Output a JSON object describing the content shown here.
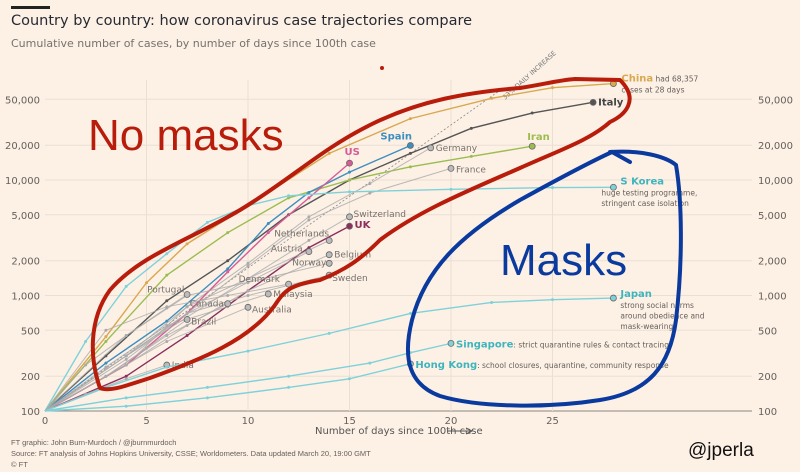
{
  "header": {
    "title": "Country by country: how coronavirus case trajectories compare",
    "subtitle": "Cumulative number of cases, by number of days since 100th case"
  },
  "footer": {
    "credit": "FT graphic: John Burn-Murdoch / @jburnmurdoch",
    "source": "Source: FT analysis of Johns Hopkins University, CSSE; Worldometers. Data updated March 20, 19:00 GMT",
    "copyright": "© FT"
  },
  "watermark": "@jperla",
  "handwritten": {
    "red_label": "No masks",
    "blue_label": "Masks",
    "red_color": "#b81d0c",
    "blue_color": "#0b3a9e"
  },
  "chart_data": {
    "type": "line",
    "title": "Country by country: how coronavirus case trajectories compare",
    "subtitle": "Cumulative number of cases, by number of days since 100th case",
    "xlabel": "Number of days since 100th case",
    "ylabel": "",
    "xlim": [
      0,
      37
    ],
    "ylim": [
      100,
      100000
    ],
    "yscale": "log",
    "xticks": [
      0,
      5,
      10,
      15,
      20,
      25
    ],
    "yticks": [
      100,
      200,
      500,
      1000,
      2000,
      5000,
      10000,
      20000,
      50000
    ],
    "ytick_labels": [
      "100",
      "200",
      "500",
      "1,000",
      "2,000",
      "5,000",
      "10,000",
      "20,000",
      "50,000"
    ],
    "grid": true,
    "reference_line": {
      "label": "33% DAILY INCREASE",
      "daily_growth": 0.33
    },
    "series": [
      {
        "name": "China",
        "color": "#d9a84f",
        "label": "China",
        "note": "had 68,357",
        "note2": "cases at 28 days",
        "points": [
          [
            0,
            100
          ],
          [
            3,
            440
          ],
          [
            5,
            1290
          ],
          [
            7,
            2800
          ],
          [
            10,
            6000
          ],
          [
            14,
            17000
          ],
          [
            18,
            34000
          ],
          [
            22,
            51000
          ],
          [
            25,
            63000
          ],
          [
            28,
            68357
          ]
        ]
      },
      {
        "name": "Italy",
        "color": "#555555",
        "label": "Italy",
        "points": [
          [
            0,
            100
          ],
          [
            3,
            300
          ],
          [
            6,
            900
          ],
          [
            9,
            2000
          ],
          [
            12,
            5000
          ],
          [
            15,
            10000
          ],
          [
            18,
            17000
          ],
          [
            21,
            28000
          ],
          [
            24,
            38000
          ],
          [
            27,
            47000
          ]
        ]
      },
      {
        "name": "Iran",
        "color": "#9bbd4f",
        "label": "Iran",
        "points": [
          [
            0,
            100
          ],
          [
            3,
            400
          ],
          [
            6,
            1500
          ],
          [
            9,
            3500
          ],
          [
            12,
            7000
          ],
          [
            15,
            10000
          ],
          [
            18,
            13000
          ],
          [
            21,
            16000
          ],
          [
            24,
            19600
          ]
        ]
      },
      {
        "name": "Spain",
        "color": "#3d8ec0",
        "label": "Spain",
        "points": [
          [
            0,
            100
          ],
          [
            3,
            260
          ],
          [
            6,
            600
          ],
          [
            9,
            1700
          ],
          [
            11,
            4200
          ],
          [
            13,
            7800
          ],
          [
            15,
            11700
          ],
          [
            18,
            19900
          ]
        ]
      },
      {
        "name": "Germany",
        "color": "#aaaaaa",
        "label": "Germany",
        "points": [
          [
            0,
            100
          ],
          [
            4,
            250
          ],
          [
            7,
            800
          ],
          [
            10,
            1900
          ],
          [
            13,
            4800
          ],
          [
            16,
            9300
          ],
          [
            19,
            19000
          ]
        ]
      },
      {
        "name": "US",
        "color": "#d75b96",
        "label": "US",
        "points": [
          [
            0,
            100
          ],
          [
            4,
            250
          ],
          [
            7,
            700
          ],
          [
            9,
            1600
          ],
          [
            11,
            3500
          ],
          [
            13,
            7000
          ],
          [
            15,
            14000
          ]
        ]
      },
      {
        "name": "France",
        "color": "#aaaaaa",
        "label": "France",
        "points": [
          [
            0,
            100
          ],
          [
            4,
            280
          ],
          [
            7,
            700
          ],
          [
            10,
            1800
          ],
          [
            13,
            4500
          ],
          [
            16,
            7700
          ],
          [
            20,
            12600
          ]
        ]
      },
      {
        "name": "S Korea",
        "color": "#7fd1d9",
        "label": "S Korea",
        "note": "huge testing programme,",
        "note2": "stringent case isolation",
        "points": [
          [
            0,
            100
          ],
          [
            2,
            400
          ],
          [
            4,
            1200
          ],
          [
            6,
            2300
          ],
          [
            8,
            4300
          ],
          [
            10,
            6000
          ],
          [
            12,
            7300
          ],
          [
            15,
            7900
          ],
          [
            20,
            8300
          ],
          [
            25,
            8600
          ],
          [
            28,
            8650
          ]
        ]
      },
      {
        "name": "Switzerland",
        "color": "#aaaaaa",
        "label": "Switzerland",
        "points": [
          [
            0,
            100
          ],
          [
            4,
            300
          ],
          [
            7,
            650
          ],
          [
            10,
            1400
          ],
          [
            13,
            3000
          ],
          [
            15,
            4800
          ]
        ]
      },
      {
        "name": "UK",
        "color": "#8c2e5e",
        "label": "UK",
        "points": [
          [
            0,
            100
          ],
          [
            4,
            200
          ],
          [
            7,
            450
          ],
          [
            10,
            1100
          ],
          [
            13,
            2600
          ],
          [
            15,
            3983
          ]
        ]
      },
      {
        "name": "Netherlands",
        "color": "#aaaaaa",
        "label": "Netherlands",
        "points": [
          [
            0,
            100
          ],
          [
            4,
            300
          ],
          [
            7,
            800
          ],
          [
            10,
            1400
          ],
          [
            14,
            2994
          ]
        ]
      },
      {
        "name": "Belgium",
        "color": "#aaaaaa",
        "label": "Belgium",
        "points": [
          [
            0,
            100
          ],
          [
            4,
            250
          ],
          [
            7,
            550
          ],
          [
            10,
            1100
          ],
          [
            14,
            2257
          ]
        ]
      },
      {
        "name": "Austria",
        "color": "#aaaaaa",
        "label": "Austria",
        "points": [
          [
            0,
            100
          ],
          [
            4,
            300
          ],
          [
            7,
            700
          ],
          [
            10,
            1300
          ],
          [
            13,
            2400
          ]
        ]
      },
      {
        "name": "Norway",
        "color": "#aaaaaa",
        "label": "Norway",
        "points": [
          [
            0,
            100
          ],
          [
            4,
            450
          ],
          [
            7,
            1000
          ],
          [
            10,
            1300
          ],
          [
            14,
            1900
          ]
        ]
      },
      {
        "name": "Sweden",
        "color": "#aaaaaa",
        "label": "Sweden",
        "points": [
          [
            0,
            100
          ],
          [
            4,
            300
          ],
          [
            7,
            700
          ],
          [
            10,
            1000
          ],
          [
            14,
            1500
          ]
        ]
      },
      {
        "name": "Denmark",
        "color": "#aaaaaa",
        "label": "Denmark",
        "points": [
          [
            0,
            100
          ],
          [
            3,
            500
          ],
          [
            6,
            800
          ],
          [
            9,
            1000
          ],
          [
            12,
            1255
          ]
        ]
      },
      {
        "name": "Malaysia",
        "color": "#aaaaaa",
        "label": "Malaysia",
        "points": [
          [
            0,
            100
          ],
          [
            3,
            240
          ],
          [
            6,
            550
          ],
          [
            9,
            800
          ],
          [
            11,
            1030
          ]
        ]
      },
      {
        "name": "Portugal",
        "color": "#aaaaaa",
        "label": "Portugal",
        "points": [
          [
            0,
            100
          ],
          [
            2,
            250
          ],
          [
            4,
            450
          ],
          [
            6,
            780
          ],
          [
            7,
            1020
          ]
        ]
      },
      {
        "name": "Canada",
        "color": "#aaaaaa",
        "label": "Canada",
        "points": [
          [
            0,
            100
          ],
          [
            3,
            200
          ],
          [
            6,
            450
          ],
          [
            9,
            850
          ]
        ]
      },
      {
        "name": "Australia",
        "color": "#aaaaaa",
        "label": "Australia",
        "points": [
          [
            0,
            100
          ],
          [
            3,
            200
          ],
          [
            6,
            400
          ],
          [
            10,
            790
          ]
        ]
      },
      {
        "name": "Brazil",
        "color": "#aaaaaa",
        "label": "Brazil",
        "points": [
          [
            0,
            100
          ],
          [
            3,
            200
          ],
          [
            5,
            350
          ],
          [
            7,
            620
          ]
        ]
      },
      {
        "name": "India",
        "color": "#aaaaaa",
        "label": "India",
        "points": [
          [
            0,
            100
          ],
          [
            2,
            140
          ],
          [
            4,
            190
          ],
          [
            6,
            250
          ]
        ]
      },
      {
        "name": "Japan",
        "color": "#7fd1d9",
        "label": "Japan",
        "note": "strong social norms",
        "note2": "around obedience and",
        "note3": "mask-wearing",
        "points": [
          [
            0,
            100
          ],
          [
            3,
            160
          ],
          [
            6,
            240
          ],
          [
            10,
            330
          ],
          [
            14,
            470
          ],
          [
            18,
            700
          ],
          [
            22,
            870
          ],
          [
            25,
            920
          ],
          [
            28,
            950
          ]
        ]
      },
      {
        "name": "Singapore",
        "color": "#7fd1d9",
        "label": "Singapore",
        "note": ": strict quarantine rules & contact tracing",
        "points": [
          [
            0,
            100
          ],
          [
            4,
            130
          ],
          [
            8,
            160
          ],
          [
            12,
            200
          ],
          [
            16,
            260
          ],
          [
            18,
            320
          ],
          [
            20,
            385
          ]
        ]
      },
      {
        "name": "Hong Kong",
        "color": "#7fd1d9",
        "label": "Hong Kong",
        "note": ": school closures, quarantine, community response",
        "points": [
          [
            0,
            100
          ],
          [
            4,
            110
          ],
          [
            8,
            130
          ],
          [
            12,
            160
          ],
          [
            15,
            190
          ],
          [
            18,
            256
          ]
        ]
      }
    ]
  }
}
